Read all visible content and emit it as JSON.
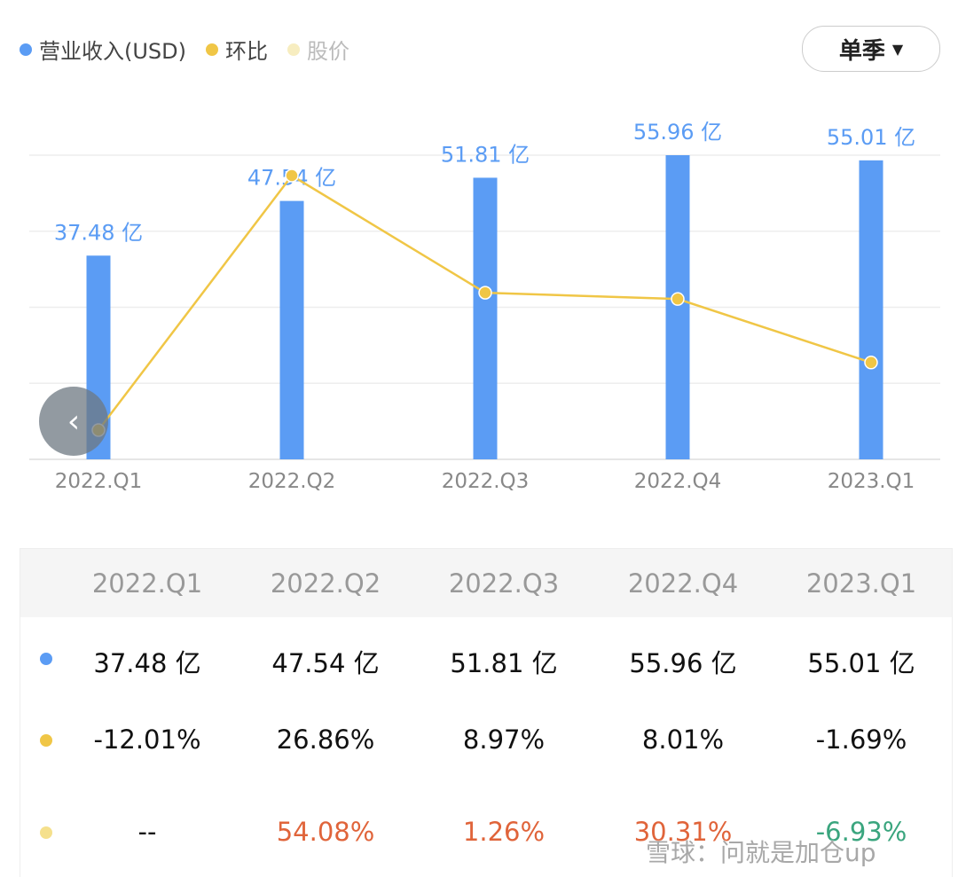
{
  "legend": [
    {
      "label": "营业收入(USD)",
      "color": "#5b9cf4"
    },
    {
      "label": "环比",
      "color": "#f0c646"
    },
    {
      "label": "股价",
      "color": "#f7edc0"
    }
  ],
  "selector": {
    "label": "单季",
    "arrow": "▼"
  },
  "back_icon": "chevron-left-icon",
  "chart_data": {
    "type": "bar+line",
    "categories": [
      "2022.Q1",
      "2022.Q2",
      "2022.Q3",
      "2022.Q4",
      "2023.Q1"
    ],
    "series": [
      {
        "name": "营业收入(USD)",
        "type": "bar",
        "values": [
          37.48,
          47.54,
          51.81,
          55.96,
          55.01
        ],
        "labels": [
          "37.48 亿",
          "47.54 亿",
          "51.81 亿",
          "55.96 亿",
          "55.01 亿"
        ],
        "color": "#5b9cf4"
      },
      {
        "name": "环比",
        "type": "line",
        "values": [
          -12.01,
          26.86,
          8.97,
          8.01,
          -1.69
        ],
        "color": "#f0c646"
      }
    ],
    "ylim": [
      0,
      55.96
    ],
    "grid": true
  },
  "table": {
    "headers": [
      "2022.Q1",
      "2022.Q2",
      "2022.Q3",
      "2022.Q4",
      "2023.Q1"
    ],
    "rows": [
      {
        "color": "#5b9cf4",
        "values": [
          "37.48 亿",
          "47.54 亿",
          "51.81 亿",
          "55.96 亿",
          "55.01 亿"
        ],
        "value_colors": [
          "#111",
          "#111",
          "#111",
          "#111",
          "#111"
        ]
      },
      {
        "color": "#f0c646",
        "values": [
          "-12.01%",
          "26.86%",
          "8.97%",
          "8.01%",
          "-1.69%"
        ],
        "value_colors": [
          "#111",
          "#111",
          "#111",
          "#111",
          "#111"
        ]
      },
      {
        "color": "#f5e08c",
        "values": [
          "--",
          "54.08%",
          "1.26%",
          "30.31%",
          "-6.93%"
        ],
        "value_colors": [
          "#111",
          "#e0643a",
          "#e0643a",
          "#e0643a",
          "#3aa57e"
        ]
      }
    ]
  },
  "watermark": "雪球：问就是加仓up"
}
